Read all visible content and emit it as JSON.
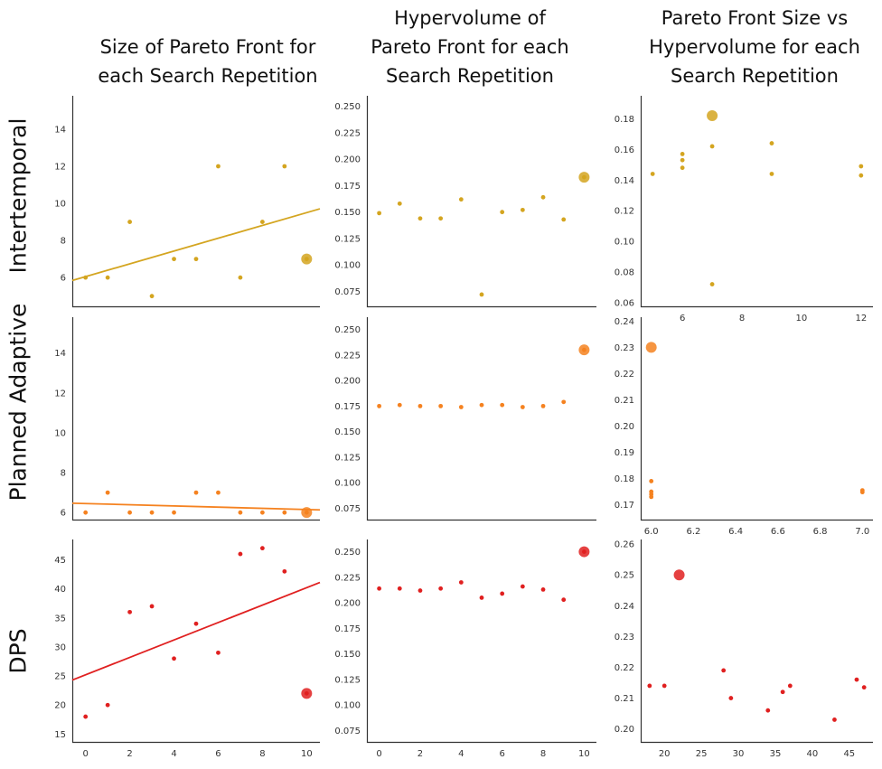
{
  "column_titles": [
    "Size of Pareto Front for\neach Search Repetition",
    "Hypervolume of\nPareto Front for each\nSearch Repetition",
    "Pareto Front Size vs\nHypervolume for each\nSearch Repetition"
  ],
  "row_labels": [
    "Intertemporal",
    "Planned Adaptive",
    "DPS"
  ],
  "colors": {
    "Intertemporal": "#d4a520",
    "Planned Adaptive": "#f58220",
    "DPS": "#e02020"
  },
  "chart_data": [
    {
      "type": "scatter",
      "row": "Intertemporal",
      "column": 1,
      "x": [
        0,
        1,
        2,
        3,
        4,
        5,
        6,
        7,
        8,
        9,
        10
      ],
      "y": [
        6,
        6,
        9,
        5,
        7,
        7,
        12,
        6,
        9,
        12,
        7
      ],
      "highlight": {
        "x": 10,
        "y": 7
      },
      "trendline": {
        "intercept": 6.05,
        "slope": 0.345
      },
      "xlim": [
        -0.6,
        10.6
      ],
      "ylim": [
        4.4,
        15.8
      ],
      "xticks": [],
      "yticks": [
        6,
        8,
        10,
        12,
        14
      ],
      "grid": false
    },
    {
      "type": "scatter",
      "row": "Intertemporal",
      "column": 2,
      "x": [
        0,
        1,
        2,
        3,
        4,
        5,
        6,
        7,
        8,
        9,
        10
      ],
      "y": [
        0.149,
        0.158,
        0.144,
        0.144,
        0.162,
        0.072,
        0.15,
        0.152,
        0.164,
        0.143,
        0.183
      ],
      "highlight": {
        "x": 10,
        "y": 0.183
      },
      "xlim": [
        -0.6,
        10.6
      ],
      "ylim": [
        0.06,
        0.26
      ],
      "xticks": [],
      "yticks": [
        "0.075",
        "0.100",
        "0.125",
        "0.150",
        "0.175",
        "0.200",
        "0.225",
        "0.250"
      ],
      "grid": false
    },
    {
      "type": "scatter",
      "row": "Intertemporal",
      "column": 3,
      "x": [
        5,
        6,
        6,
        6,
        7,
        7,
        9,
        9,
        12,
        12
      ],
      "y": [
        0.144,
        0.157,
        0.153,
        0.148,
        0.162,
        0.072,
        0.164,
        0.144,
        0.149,
        0.143
      ],
      "highlight": {
        "x": 7,
        "y": 0.182
      },
      "xlim": [
        4.6,
        12.4
      ],
      "ylim": [
        0.057,
        0.195
      ],
      "xticks": [
        6,
        8,
        10,
        12
      ],
      "yticks": [
        "0.06",
        "0.08",
        "0.10",
        "0.12",
        "0.14",
        "0.16",
        "0.18"
      ],
      "grid": false
    },
    {
      "type": "scatter",
      "row": "Planned Adaptive",
      "column": 1,
      "x": [
        0,
        1,
        2,
        3,
        4,
        5,
        6,
        7,
        8,
        9,
        10
      ],
      "y": [
        6,
        7,
        6,
        6,
        6,
        7,
        7,
        6,
        6,
        6,
        6
      ],
      "highlight": {
        "x": 10,
        "y": 6
      },
      "trendline": {
        "intercept": 6.45,
        "slope": -0.03
      },
      "xlim": [
        -0.6,
        10.6
      ],
      "ylim": [
        5.6,
        15.8
      ],
      "xticks": [],
      "yticks": [
        6,
        8,
        10,
        12,
        14
      ],
      "grid": false
    },
    {
      "type": "scatter",
      "row": "Planned Adaptive",
      "column": 2,
      "x": [
        0,
        1,
        2,
        3,
        4,
        5,
        6,
        7,
        8,
        9,
        10
      ],
      "y": [
        0.175,
        0.176,
        0.175,
        0.175,
        0.174,
        0.176,
        0.176,
        0.174,
        0.175,
        0.179,
        0.23
      ],
      "highlight": {
        "x": 10,
        "y": 0.23
      },
      "xlim": [
        -0.6,
        10.6
      ],
      "ylim": [
        0.063,
        0.262
      ],
      "xticks": [],
      "yticks": [
        "0.075",
        "0.100",
        "0.125",
        "0.150",
        "0.175",
        "0.200",
        "0.225",
        "0.250"
      ],
      "grid": false
    },
    {
      "type": "scatter",
      "row": "Planned Adaptive",
      "column": 3,
      "x": [
        6,
        6,
        6,
        6,
        7,
        7
      ],
      "y": [
        0.179,
        0.175,
        0.174,
        0.173,
        0.1755,
        0.1748
      ],
      "highlight": {
        "x": 6,
        "y": 0.23
      },
      "xlim": [
        5.95,
        7.05
      ],
      "ylim": [
        0.164,
        0.2415
      ],
      "xticks": [
        "6.0",
        "6.2",
        "6.4",
        "6.6",
        "6.8",
        "7.0"
      ],
      "yticks": [
        "0.17",
        "0.18",
        "0.19",
        "0.20",
        "0.21",
        "0.22",
        "0.23",
        "0.24"
      ],
      "grid": false
    },
    {
      "type": "scatter",
      "row": "DPS",
      "column": 1,
      "x": [
        0,
        1,
        2,
        3,
        4,
        5,
        6,
        7,
        8,
        9,
        10
      ],
      "y": [
        18,
        20,
        36,
        37,
        28,
        34,
        29,
        46,
        47,
        43,
        22
      ],
      "highlight": {
        "x": 10,
        "y": 22
      },
      "trendline": {
        "intercept": 25.2,
        "slope": 1.5
      },
      "xlim": [
        -0.6,
        10.6
      ],
      "ylim": [
        13.5,
        48.5
      ],
      "xticks": [
        0,
        2,
        4,
        6,
        8,
        10
      ],
      "yticks": [
        15,
        20,
        25,
        30,
        35,
        40,
        45
      ],
      "grid": false
    },
    {
      "type": "scatter",
      "row": "DPS",
      "column": 2,
      "x": [
        0,
        1,
        2,
        3,
        4,
        5,
        6,
        7,
        8,
        9,
        10
      ],
      "y": [
        0.214,
        0.214,
        0.212,
        0.214,
        0.22,
        0.205,
        0.209,
        0.216,
        0.213,
        0.203,
        0.25
      ],
      "highlight": {
        "x": 10,
        "y": 0.25
      },
      "xlim": [
        -0.6,
        10.6
      ],
      "ylim": [
        0.063,
        0.262
      ],
      "xticks": [
        0,
        2,
        4,
        6,
        8,
        10
      ],
      "yticks": [
        "0.075",
        "0.100",
        "0.125",
        "0.150",
        "0.175",
        "0.200",
        "0.225",
        "0.250"
      ],
      "grid": false
    },
    {
      "type": "scatter",
      "row": "DPS",
      "column": 3,
      "x": [
        18,
        20,
        28,
        29,
        34,
        36,
        37,
        43,
        46,
        47
      ],
      "y": [
        0.214,
        0.214,
        0.219,
        0.21,
        0.206,
        0.212,
        0.214,
        0.203,
        0.216,
        0.2135
      ],
      "highlight": {
        "x": 22,
        "y": 0.25
      },
      "xlim": [
        16.8,
        48.2
      ],
      "ylim": [
        0.1955,
        0.2615
      ],
      "xticks": [
        20,
        25,
        30,
        35,
        40,
        45
      ],
      "yticks": [
        "0.20",
        "0.21",
        "0.22",
        "0.23",
        "0.24",
        "0.25",
        "0.26"
      ],
      "grid": false
    }
  ]
}
